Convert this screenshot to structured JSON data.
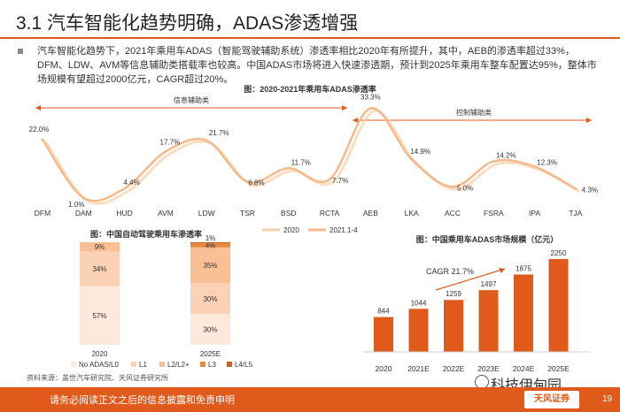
{
  "page": {
    "title": "3.1 汽车智能化趋势明确，ADAS渗透增强",
    "paragraph": "汽车智能化趋势下，2021年乘用车ADAS（智能驾驶辅助系统）渗透率相比2020年有所提升，其中，AEB的渗透率超过33%，DFM、LDW、AVM等信息辅助类搭载率也较高。中国ADAS市场将进入快速渗透期，预计到2025年乘用车整车配置达95%，整体市场规模有望超过2000亿元，CAGR超过20%。",
    "source": "资料来源：盖世汽车研究院、天风证券研究所",
    "footer": "请务必阅读正文之后的信息披露和免责申明",
    "page_number": "19",
    "watermark": "科技伊甸园",
    "logo_text": "天风证券"
  },
  "colors": {
    "accent": "#e05a1b",
    "light": "#f8cfa8",
    "dark": "#e05a1b"
  },
  "chart_data": [
    {
      "type": "line",
      "title": "图：2020-2021年乘用车ADAS渗透率",
      "categories": [
        "DFM",
        "DAM",
        "HUD",
        "AVM",
        "LDW",
        "TSR",
        "BSD",
        "RCTA",
        "AEB",
        "LKA",
        "ACC",
        "FSRA",
        "IPA",
        "TJA"
      ],
      "series": [
        {
          "name": "2020",
          "values": [
            null,
            null,
            null,
            null,
            null,
            null,
            null,
            null,
            null,
            null,
            null,
            null,
            null,
            null
          ]
        },
        {
          "name": "2021.1-4",
          "values": [
            22.0,
            1.0,
            4.4,
            17.7,
            21.7,
            6.8,
            11.7,
            7.7,
            33.3,
            14.9,
            5.0,
            14.2,
            12.3,
            4.3
          ]
        }
      ],
      "data_labels": [
        "22.0%",
        "1.0%",
        "4.4%",
        "17.7%",
        "21.7%",
        "6.8%",
        "11.7%",
        "7.7%",
        "33.3%",
        "14.9%",
        "5.0%",
        "14.2%",
        "12.3%",
        "4.3%"
      ],
      "group_labels": [
        "信息辅助类",
        "控制辅助类"
      ],
      "ylim": [
        0,
        36
      ]
    },
    {
      "type": "bar",
      "stacked": true,
      "title": "图：中国自动驾驶乘用车渗透率",
      "categories": [
        "2020",
        "2025E"
      ],
      "series": [
        {
          "name": "No ADAS/L0",
          "values": [
            57,
            30
          ]
        },
        {
          "name": "L1",
          "values": [
            34,
            30
          ]
        },
        {
          "name": "L2/L2+",
          "values": [
            9,
            35
          ]
        },
        {
          "name": "L3",
          "values": [
            0,
            4
          ]
        },
        {
          "name": "L4/L5",
          "values": [
            0,
            1
          ]
        }
      ],
      "value_labels": [
        [
          "57%",
          "34%",
          "9%",
          "",
          ""
        ],
        [
          "30%",
          "30%",
          "35%",
          "4%",
          "1%"
        ]
      ]
    },
    {
      "type": "bar",
      "title": "图：中国乘用车ADAS市场规模（亿元）",
      "categories": [
        "2020",
        "2021E",
        "2022E",
        "2023E",
        "2024E",
        "2025E"
      ],
      "values": [
        844,
        1044,
        1259,
        1497,
        1875,
        2250
      ],
      "annotation": "CAGR 21.7%",
      "ylim": [
        0,
        2400
      ]
    }
  ]
}
